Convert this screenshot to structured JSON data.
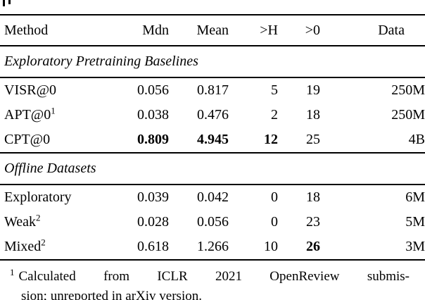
{
  "table": {
    "columns": [
      "Method",
      "Mdn",
      "Mean",
      ">H",
      ">0",
      "Data"
    ],
    "sections": [
      {
        "title": "Exploratory Pretraining Baselines",
        "rows": [
          {
            "method": "VISR@0",
            "sup": "",
            "mdn": "0.056",
            "mean": "0.817",
            "gtH": "5",
            "gt0": "19",
            "data": "250M"
          },
          {
            "method": "APT@0",
            "sup": "1",
            "mdn": "0.038",
            "mean": "0.476",
            "gtH": "2",
            "gt0": "18",
            "data": "250M"
          },
          {
            "method": "CPT@0",
            "sup": "",
            "mdn": "0.809",
            "mean": "4.945",
            "gtH": "12",
            "gt0": "25",
            "data": "4B"
          }
        ]
      },
      {
        "title": "Offline Datasets",
        "rows": [
          {
            "method": "Exploratory",
            "sup": "",
            "mdn": "0.039",
            "mean": "0.042",
            "gtH": "0",
            "gt0": "18",
            "data": "6M"
          },
          {
            "method": "Weak",
            "sup": "2",
            "mdn": "0.028",
            "mean": "0.056",
            "gtH": "0",
            "gt0": "23",
            "data": "5M"
          },
          {
            "method": "Mixed",
            "sup": "2",
            "mdn": "0.618",
            "mean": "1.266",
            "gtH": "10",
            "gt0": "26",
            "data": "3M"
          }
        ]
      }
    ],
    "footnote": {
      "marker": "1",
      "line1": "Calculated from ICLR 2021 OpenReview submis-",
      "line2": "sion; unreported in arXiv version."
    }
  }
}
